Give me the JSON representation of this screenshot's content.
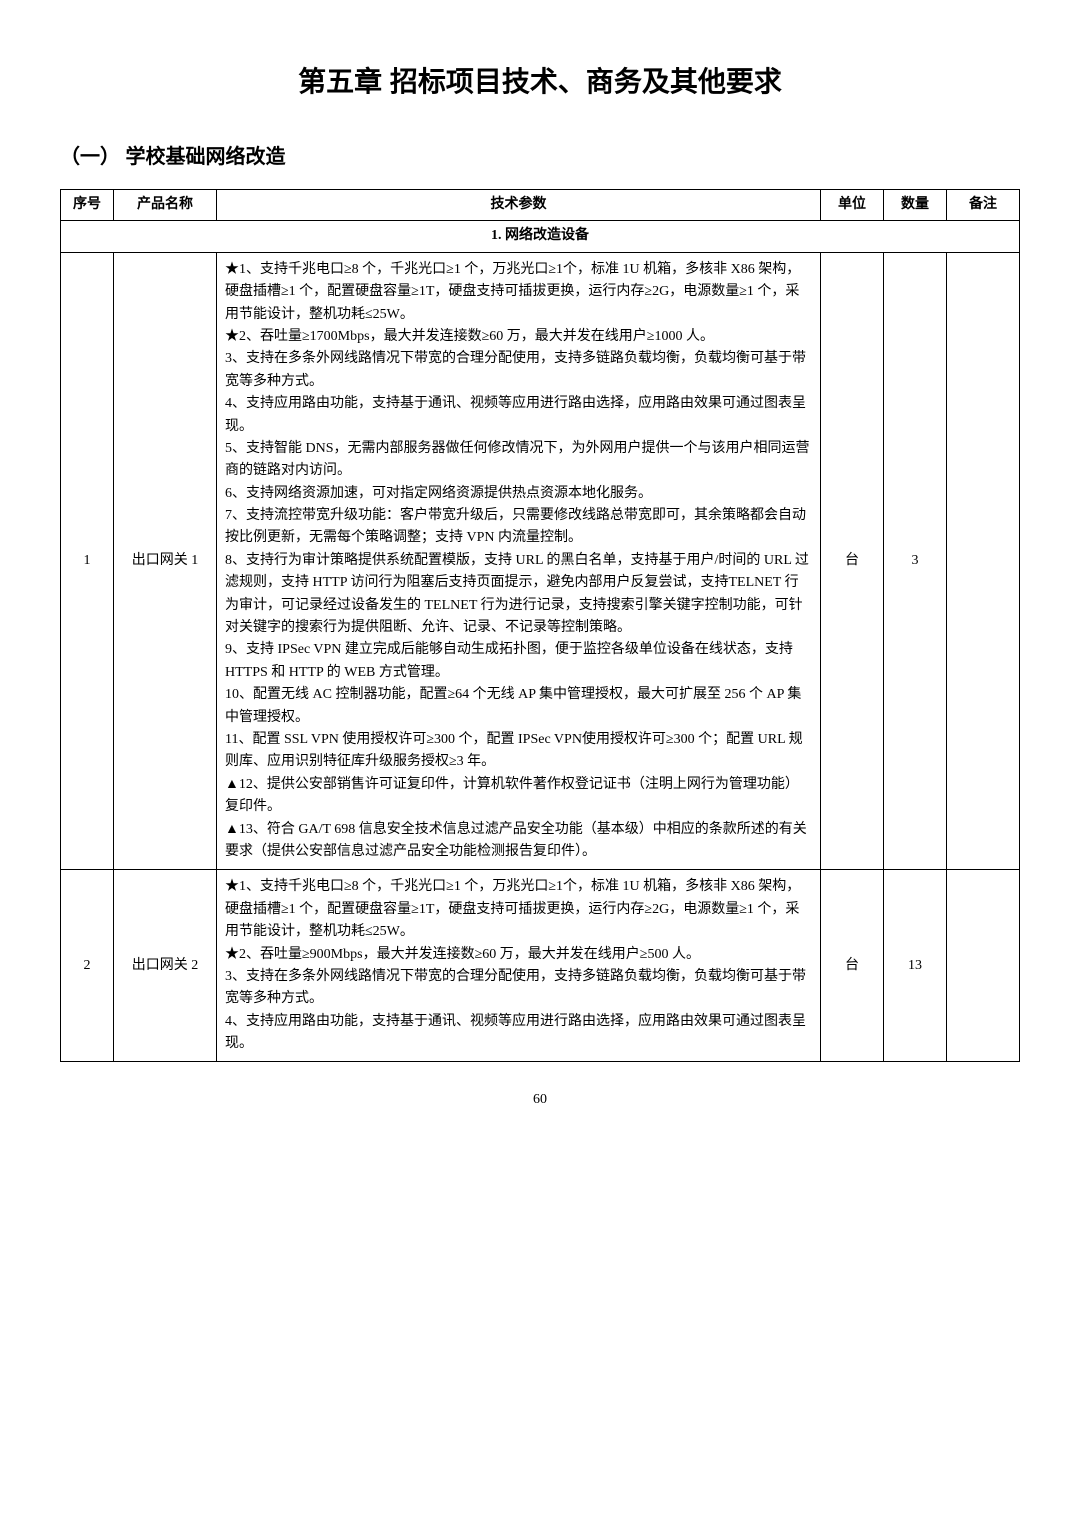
{
  "chapterTitle": "第五章   招标项目技术、商务及其他要求",
  "sectionTitle": "（一） 学校基础网络改造",
  "table": {
    "headers": {
      "seq": "序号",
      "name": "产品名称",
      "spec": "技术参数",
      "unit": "单位",
      "qty": "数量",
      "note": "备注"
    },
    "sectionHeader": "1. 网络改造设备",
    "rows": [
      {
        "seq": "1",
        "name": "出口网关 1",
        "spec": "★1、支持千兆电口≥8 个，千兆光口≥1 个，万兆光口≥1个，标准 1U 机箱，多核非 X86 架构，硬盘插槽≥1 个，配置硬盘容量≥1T，硬盘支持可插拔更换，运行内存≥2G，电源数量≥1 个，采用节能设计，整机功耗≤25W。\n★2、吞吐量≥1700Mbps，最大并发连接数≥60 万，最大并发在线用户≥1000 人。\n3、支持在多条外网线路情况下带宽的合理分配使用，支持多链路负载均衡，负载均衡可基于带宽等多种方式。\n4、支持应用路由功能，支持基于通讯、视频等应用进行路由选择，应用路由效果可通过图表呈现。\n5、支持智能 DNS，无需内部服务器做任何修改情况下，为外网用户提供一个与该用户相同运营商的链路对内访问。\n6、支持网络资源加速，可对指定网络资源提供热点资源本地化服务。\n7、支持流控带宽升级功能：客户带宽升级后，只需要修改线路总带宽即可，其余策略都会自动按比例更新，无需每个策略调整；支持 VPN 内流量控制。\n8、支持行为审计策略提供系统配置模版，支持 URL 的黑白名单，支持基于用户/时间的 URL 过滤规则，支持 HTTP 访问行为阻塞后支持页面提示，避免内部用户反复尝试，支持TELNET 行为审计，可记录经过设备发生的 TELNET 行为进行记录，支持搜索引擎关键字控制功能，可针对关键字的搜索行为提供阻断、允许、记录、不记录等控制策略。\n9、支持 IPSec VPN 建立完成后能够自动生成拓扑图，便于监控各级单位设备在线状态，支持 HTTPS 和 HTTP 的 WEB 方式管理。\n10、配置无线 AC 控制器功能，配置≥64 个无线 AP 集中管理授权，最大可扩展至 256 个 AP 集中管理授权。\n11、配置 SSL VPN 使用授权许可≥300 个，配置 IPSec VPN使用授权许可≥300 个；配置 URL 规则库、应用识别特征库升级服务授权≥3 年。\n▲12、提供公安部销售许可证复印件，计算机软件著作权登记证书（注明上网行为管理功能）复印件。\n▲13、符合 GA/T 698 信息安全技术信息过滤产品安全功能（基本级）中相应的条款所述的有关要求（提供公安部信息过滤产品安全功能检测报告复印件）。",
        "unit": "台",
        "qty": "3",
        "note": ""
      },
      {
        "seq": "2",
        "name": "出口网关 2",
        "spec": "★1、支持千兆电口≥8 个，千兆光口≥1 个，万兆光口≥1个，标准 1U 机箱，多核非 X86 架构，硬盘插槽≥1 个，配置硬盘容量≥1T，硬盘支持可插拔更换，运行内存≥2G，电源数量≥1 个，采用节能设计，整机功耗≤25W。\n★2、吞吐量≥900Mbps，最大并发连接数≥60 万，最大并发在线用户≥500 人。\n3、支持在多条外网线路情况下带宽的合理分配使用，支持多链路负载均衡，负载均衡可基于带宽等多种方式。\n4、支持应用路由功能，支持基于通讯、视频等应用进行路由选择，应用路由效果可通过图表呈现。",
        "unit": "台",
        "qty": "13",
        "note": ""
      }
    ]
  },
  "pageNumber": "60"
}
